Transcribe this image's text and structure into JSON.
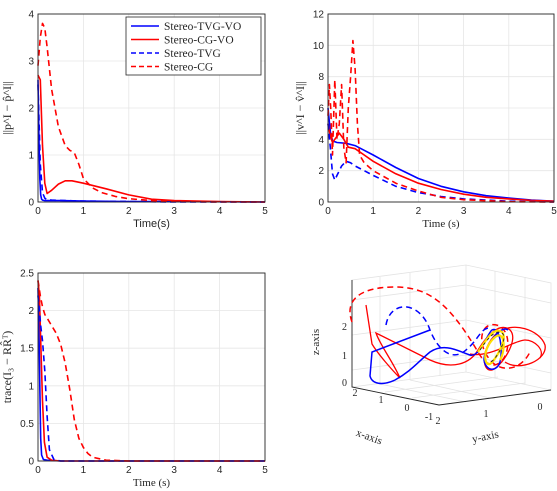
{
  "figure": {
    "legend": [
      {
        "label": "Stereo-TVG-VO",
        "color": "#0000ff",
        "dash": "solid"
      },
      {
        "label": "Stereo-CG-VO",
        "color": "#ff0000",
        "dash": "solid"
      },
      {
        "label": "Stereo-TVG",
        "color": "#0000ff",
        "dash": "dashed"
      },
      {
        "label": "Stereo-CG",
        "color": "#ff0000",
        "dash": "dashed"
      }
    ],
    "colors": {
      "blue": "#0000ff",
      "red": "#ff0000",
      "yellow": "#ffe000",
      "axis": "#262626",
      "grid": "#e6e6e6"
    }
  },
  "chart_data": [
    {
      "type": "line",
      "title": "",
      "xlabel": "Time(s)",
      "ylabel": "||p^I − p̂^I||",
      "xlim": [
        0,
        5
      ],
      "ylim": [
        0,
        4
      ],
      "xticks": [
        "0",
        "1",
        "2",
        "3",
        "4",
        "5"
      ],
      "yticks": [
        "0",
        "1",
        "2",
        "3",
        "4"
      ],
      "grid": true,
      "legend_position": "top-right",
      "series": [
        {
          "name": "Stereo-TVG-VO",
          "color": "#0000ff",
          "dash": "solid",
          "x": [
            0,
            0.02,
            0.04,
            0.06,
            0.08,
            0.1,
            0.15,
            0.25,
            0.5,
            1,
            2,
            3,
            5
          ],
          "y": [
            2.6,
            1.4,
            0.5,
            0.15,
            0.06,
            0.04,
            0.03,
            0.03,
            0.03,
            0.02,
            0.01,
            0.01,
            0.0
          ]
        },
        {
          "name": "Stereo-CG-VO",
          "color": "#ff0000",
          "dash": "solid",
          "x": [
            0,
            0.05,
            0.1,
            0.15,
            0.2,
            0.3,
            0.45,
            0.6,
            0.75,
            1,
            1.5,
            2,
            2.5,
            3,
            4,
            5
          ],
          "y": [
            2.7,
            2.6,
            1.2,
            0.4,
            0.18,
            0.25,
            0.38,
            0.45,
            0.45,
            0.4,
            0.28,
            0.15,
            0.06,
            0.03,
            0.01,
            0.0
          ]
        },
        {
          "name": "Stereo-TVG",
          "color": "#0000ff",
          "dash": "dashed",
          "x": [
            0,
            0.05,
            0.1,
            0.15,
            0.2,
            0.3,
            0.6,
            1,
            2,
            3,
            5
          ],
          "y": [
            2.5,
            0.8,
            0.2,
            0.08,
            0.05,
            0.04,
            0.03,
            0.02,
            0.01,
            0.0,
            0.0
          ]
        },
        {
          "name": "Stereo-CG",
          "color": "#ff0000",
          "dash": "dashed",
          "x": [
            0,
            0.05,
            0.1,
            0.15,
            0.2,
            0.3,
            0.45,
            0.6,
            0.7,
            0.8,
            0.9,
            1.0,
            1.2,
            1.4,
            1.7,
            2.0,
            2.5,
            3.0,
            4,
            5
          ],
          "y": [
            2.9,
            3.5,
            3.8,
            3.7,
            3.3,
            2.4,
            1.6,
            1.2,
            1.1,
            1.05,
            0.8,
            0.5,
            0.3,
            0.2,
            0.12,
            0.07,
            0.03,
            0.01,
            0.0,
            0.0
          ]
        }
      ]
    },
    {
      "type": "line",
      "title": "",
      "xlabel": "Time (s)",
      "ylabel": "||v^I − v̂^I||",
      "xlim": [
        0,
        5
      ],
      "ylim": [
        0,
        12
      ],
      "xticks": [
        "0",
        "1",
        "2",
        "3",
        "4",
        "5"
      ],
      "yticks": [
        "0",
        "2",
        "4",
        "6",
        "8",
        "10",
        "12"
      ],
      "grid": true,
      "series": [
        {
          "name": "Stereo-TVG-VO",
          "color": "#0000ff",
          "dash": "solid",
          "x": [
            0,
            0.05,
            0.1,
            0.2,
            0.4,
            0.6,
            0.8,
            1.0,
            1.5,
            2.0,
            2.5,
            3.0,
            3.5,
            4.0,
            4.5,
            5.0
          ],
          "y": [
            6.0,
            4.5,
            3.9,
            3.8,
            3.75,
            3.6,
            3.3,
            3.0,
            2.2,
            1.5,
            1.0,
            0.65,
            0.4,
            0.25,
            0.12,
            0.05
          ]
        },
        {
          "name": "Stereo-CG-VO",
          "color": "#ff0000",
          "dash": "solid",
          "x": [
            0,
            0.05,
            0.1,
            0.15,
            0.25,
            0.35,
            0.45,
            0.6,
            0.8,
            1.0,
            1.5,
            2.0,
            2.5,
            3.0,
            3.5,
            4.0,
            4.5,
            5.0
          ],
          "y": [
            5.0,
            4.2,
            3.8,
            4.0,
            4.4,
            4.0,
            3.5,
            3.4,
            3.0,
            2.6,
            1.8,
            1.2,
            0.8,
            0.5,
            0.3,
            0.2,
            0.1,
            0.05
          ]
        },
        {
          "name": "Stereo-TVG",
          "color": "#0000ff",
          "dash": "dashed",
          "x": [
            0,
            0.05,
            0.1,
            0.15,
            0.2,
            0.3,
            0.4,
            0.5,
            0.6,
            0.8,
            1.0,
            1.5,
            2.0,
            2.5,
            3.0,
            4.0,
            5.0
          ],
          "y": [
            5.0,
            3.5,
            1.8,
            1.4,
            1.7,
            2.3,
            2.6,
            2.5,
            2.3,
            2.0,
            1.7,
            1.0,
            0.6,
            0.35,
            0.2,
            0.05,
            0.0
          ]
        },
        {
          "name": "Stereo-CG",
          "color": "#ff0000",
          "dash": "dashed",
          "x": [
            0,
            0.03,
            0.06,
            0.1,
            0.15,
            0.2,
            0.25,
            0.3,
            0.35,
            0.4,
            0.45,
            0.5,
            0.55,
            0.6,
            0.65,
            0.7,
            0.8,
            1.0,
            1.5,
            2.0,
            2.5,
            3.0,
            4.0,
            5.0
          ],
          "y": [
            5.5,
            7.5,
            6.0,
            3.0,
            7.8,
            4.0,
            5.0,
            7.5,
            3.5,
            2.5,
            6.0,
            8.0,
            10.3,
            8.5,
            5.0,
            3.0,
            2.5,
            2.0,
            1.2,
            0.7,
            0.3,
            0.15,
            0.02,
            0.0
          ]
        }
      ]
    },
    {
      "type": "line",
      "title": "",
      "xlabel": "Time (s)",
      "ylabel": "trace(I₃ − RR̂ᵀ)",
      "xlim": [
        0,
        5
      ],
      "ylim": [
        0,
        2.5
      ],
      "xticks": [
        "0",
        "1",
        "2",
        "3",
        "4",
        "5"
      ],
      "yticks": [
        "0",
        "0.5",
        "1",
        "1.5",
        "2",
        "2.5"
      ],
      "grid": true,
      "series": [
        {
          "name": "Stereo-TVG-VO",
          "color": "#0000ff",
          "dash": "solid",
          "x": [
            0,
            0.02,
            0.04,
            0.06,
            0.08,
            0.12,
            0.2,
            0.5,
            1,
            5
          ],
          "y": [
            2.3,
            1.8,
            1.0,
            0.3,
            0.08,
            0.02,
            0.01,
            0.0,
            0.0,
            0.0
          ]
        },
        {
          "name": "Stereo-CG-VO",
          "color": "#ff0000",
          "dash": "solid",
          "x": [
            0,
            0.03,
            0.06,
            0.1,
            0.14,
            0.2,
            0.3,
            0.5,
            1,
            5
          ],
          "y": [
            2.4,
            2.2,
            1.6,
            0.8,
            0.25,
            0.05,
            0.01,
            0.0,
            0.0,
            0.0
          ]
        },
        {
          "name": "Stereo-TVG",
          "color": "#0000ff",
          "dash": "dashed",
          "x": [
            0,
            0.03,
            0.06,
            0.1,
            0.15,
            0.2,
            0.25,
            0.35,
            0.5,
            1,
            5
          ],
          "y": [
            2.2,
            2.0,
            1.8,
            1.6,
            1.2,
            0.6,
            0.15,
            0.02,
            0.0,
            0.0,
            0.0
          ]
        },
        {
          "name": "Stereo-CG",
          "color": "#ff0000",
          "dash": "dashed",
          "x": [
            0,
            0.05,
            0.1,
            0.15,
            0.2,
            0.3,
            0.4,
            0.5,
            0.6,
            0.7,
            0.8,
            0.9,
            1.0,
            1.1,
            1.2,
            1.5,
            2,
            5
          ],
          "y": [
            2.4,
            2.2,
            2.05,
            1.95,
            1.9,
            1.8,
            1.7,
            1.55,
            1.3,
            0.95,
            0.55,
            0.3,
            0.18,
            0.1,
            0.05,
            0.01,
            0.0,
            0.0
          ]
        }
      ]
    },
    {
      "type": "line3d",
      "title": "",
      "xlabel": "x-axis",
      "ylabel": "y-axis",
      "zlabel": "z-axis",
      "xticks": [
        "-1",
        "0",
        "1",
        "2"
      ],
      "yticks": [
        "2",
        "1",
        "0"
      ],
      "zticks": [
        "0",
        "1",
        "2"
      ],
      "grid": true,
      "series_colors": [
        "#0000ff",
        "#ff0000",
        "#ffe000"
      ]
    }
  ]
}
